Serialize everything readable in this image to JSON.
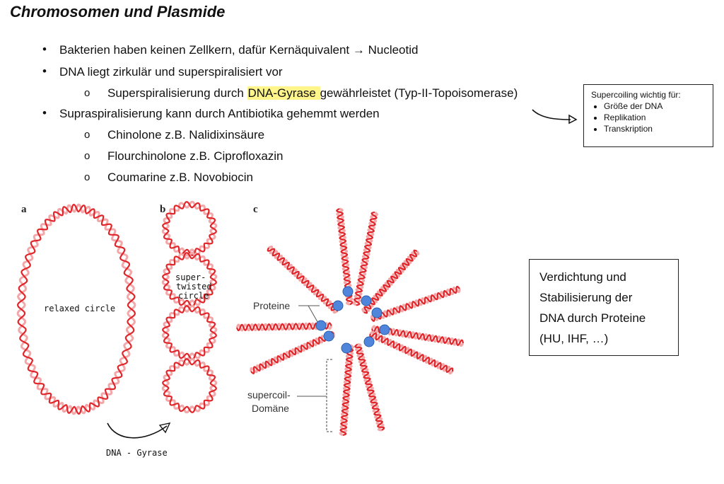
{
  "title": "Chromosomen und Plasmide",
  "bullets": {
    "b1": "Bakterien haben keinen Zellkern, dafür Kernäquivalent → Nucleotid",
    "b2": "DNA liegt zirkulär und superspiralisiert vor",
    "b2_sub1_pre": "Superspiralisierung durch ",
    "b2_sub1_highlight": "DNA-Gyrase ",
    "b2_sub1_post": "gewährleistet (Typ-II-Topoisomerase)",
    "b3": "Supraspiralisierung kann durch Antibiotika gehemmt werden",
    "b3_sub1": "Chinolone z.B. Nalidixinsäure",
    "b3_sub2": "Flourchinolone z.B. Ciprofloxazin",
    "b3_sub3": "Coumarine z.B. Novobiocin"
  },
  "note_box": {
    "heading": "Supercoiling wichtig für:",
    "items": [
      "Größe der DNA",
      "Replikation",
      "Transkription"
    ]
  },
  "info_box": {
    "line1": "Verdichtung und",
    "line2": "Stabilisierung der",
    "line3": "DNA durch Proteine",
    "line4": "(HU, IHF, …)"
  },
  "figure": {
    "panel_a": "a",
    "panel_b": "b",
    "panel_c": "c",
    "relaxed_label": "relaxed circle",
    "supertwisted_label_1": "super-",
    "supertwisted_label_2": "twisted",
    "supertwisted_label_3": "circle",
    "gyrase_label": "DNA - Gyrase",
    "proteine_label": "Proteine",
    "supercoil_label_1": "supercoil-",
    "supercoil_label_2": "Domäne"
  },
  "colors": {
    "dna_red": "#e0262a",
    "dna_pink": "#f2a7a9",
    "protein_blue": "#4f86db",
    "highlight": "#fff58a"
  }
}
